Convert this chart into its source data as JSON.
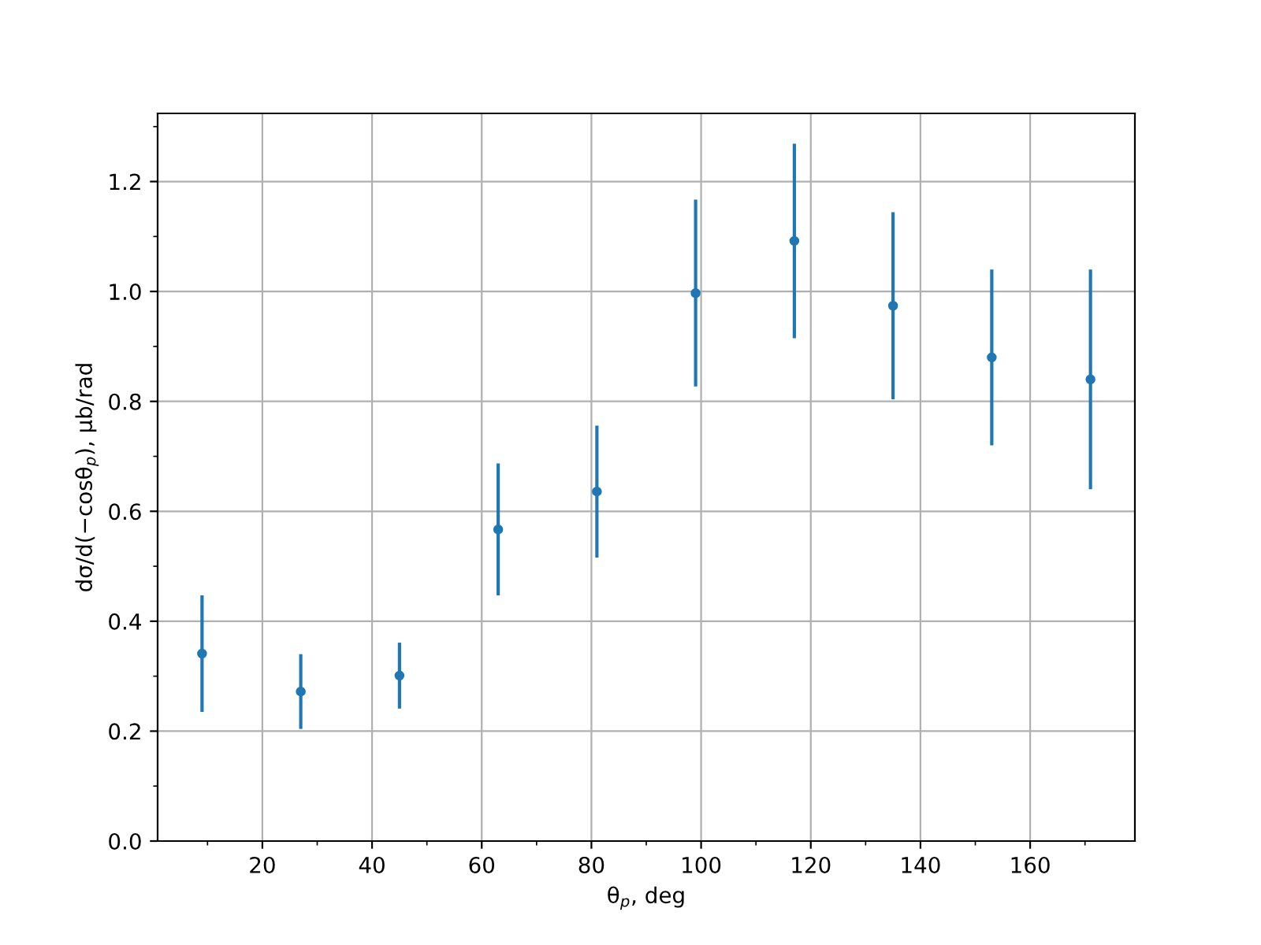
{
  "chart_data": {
    "type": "scatter",
    "xlabel": "θ$_{p}$, deg",
    "ylabel": "dσ/d(−cosθ$_{p}$), μb/rad",
    "x": [
      9,
      27,
      45,
      63,
      81,
      99,
      117,
      135,
      153,
      171
    ],
    "values": [
      0.341,
      0.272,
      0.301,
      0.567,
      0.636,
      0.997,
      1.092,
      0.974,
      0.88,
      0.84
    ],
    "errors": [
      0.106,
      0.068,
      0.06,
      0.12,
      0.12,
      0.17,
      0.177,
      0.17,
      0.16,
      0.2
    ],
    "color": "#1f77b4",
    "marker": "circle",
    "grid": true,
    "xlim": [
      0.9,
      179.1
    ],
    "xticks": [
      20,
      40,
      60,
      80,
      100,
      120,
      140,
      160
    ],
    "ylim": [
      0,
      1.324
    ],
    "yticks": [
      {
        "value": 0,
        "label": "0.0"
      },
      0.2,
      0.4,
      0.6,
      0.8,
      {
        "value": 1,
        "label": "1.0"
      },
      1.2
    ]
  }
}
